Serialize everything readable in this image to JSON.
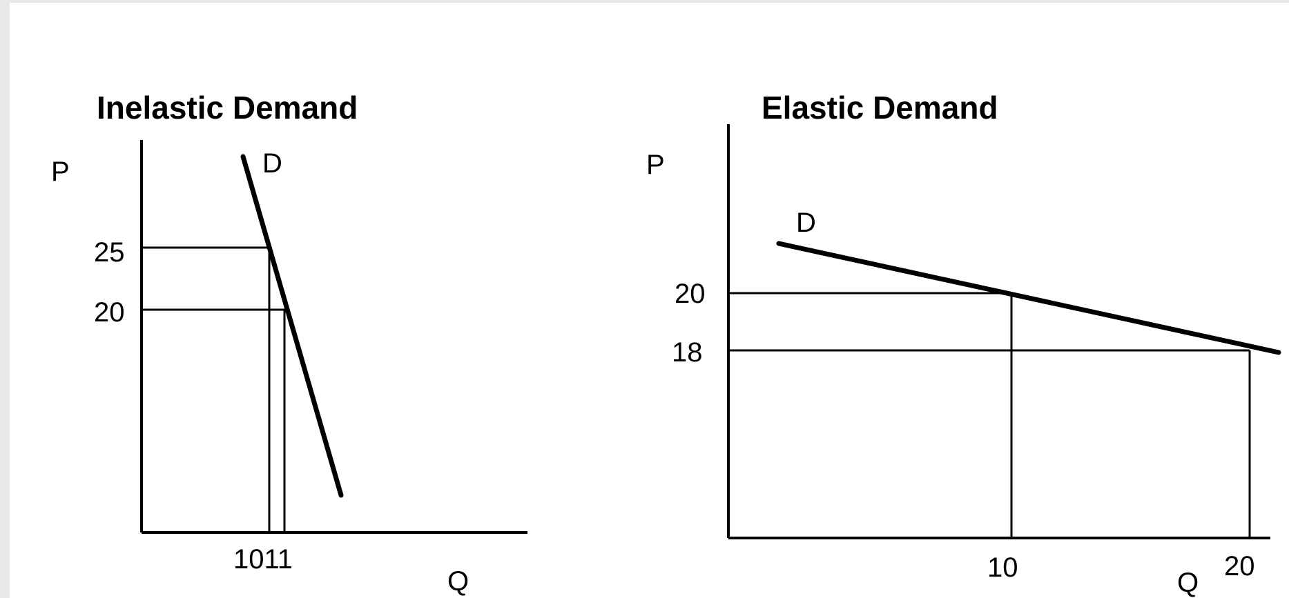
{
  "panels": {
    "inelastic": {
      "title": "Inelastic Demand",
      "y_axis_label": "P",
      "x_axis_label": "Q",
      "curve_label": "D",
      "price_ticks": [
        "25",
        "20"
      ],
      "quantity_tick": "1011"
    },
    "elastic": {
      "title": "Elastic Demand",
      "y_axis_label": "P",
      "x_axis_label": "Q",
      "curve_label": "D",
      "price_ticks": [
        "20",
        "18"
      ],
      "quantity_ticks": [
        "10",
        "20"
      ]
    }
  },
  "chart_data": [
    {
      "type": "line",
      "title": "Inelastic Demand",
      "xlabel": "Q",
      "ylabel": "P",
      "series": [
        {
          "name": "D"
        }
      ],
      "points": [
        {
          "x": 10,
          "y": 25
        },
        {
          "x": 11,
          "y": 20
        }
      ]
    },
    {
      "type": "line",
      "title": "Elastic Demand",
      "xlabel": "Q",
      "ylabel": "P",
      "series": [
        {
          "name": "D"
        }
      ],
      "points": [
        {
          "x": 10,
          "y": 20
        },
        {
          "x": 20,
          "y": 18
        }
      ]
    }
  ]
}
